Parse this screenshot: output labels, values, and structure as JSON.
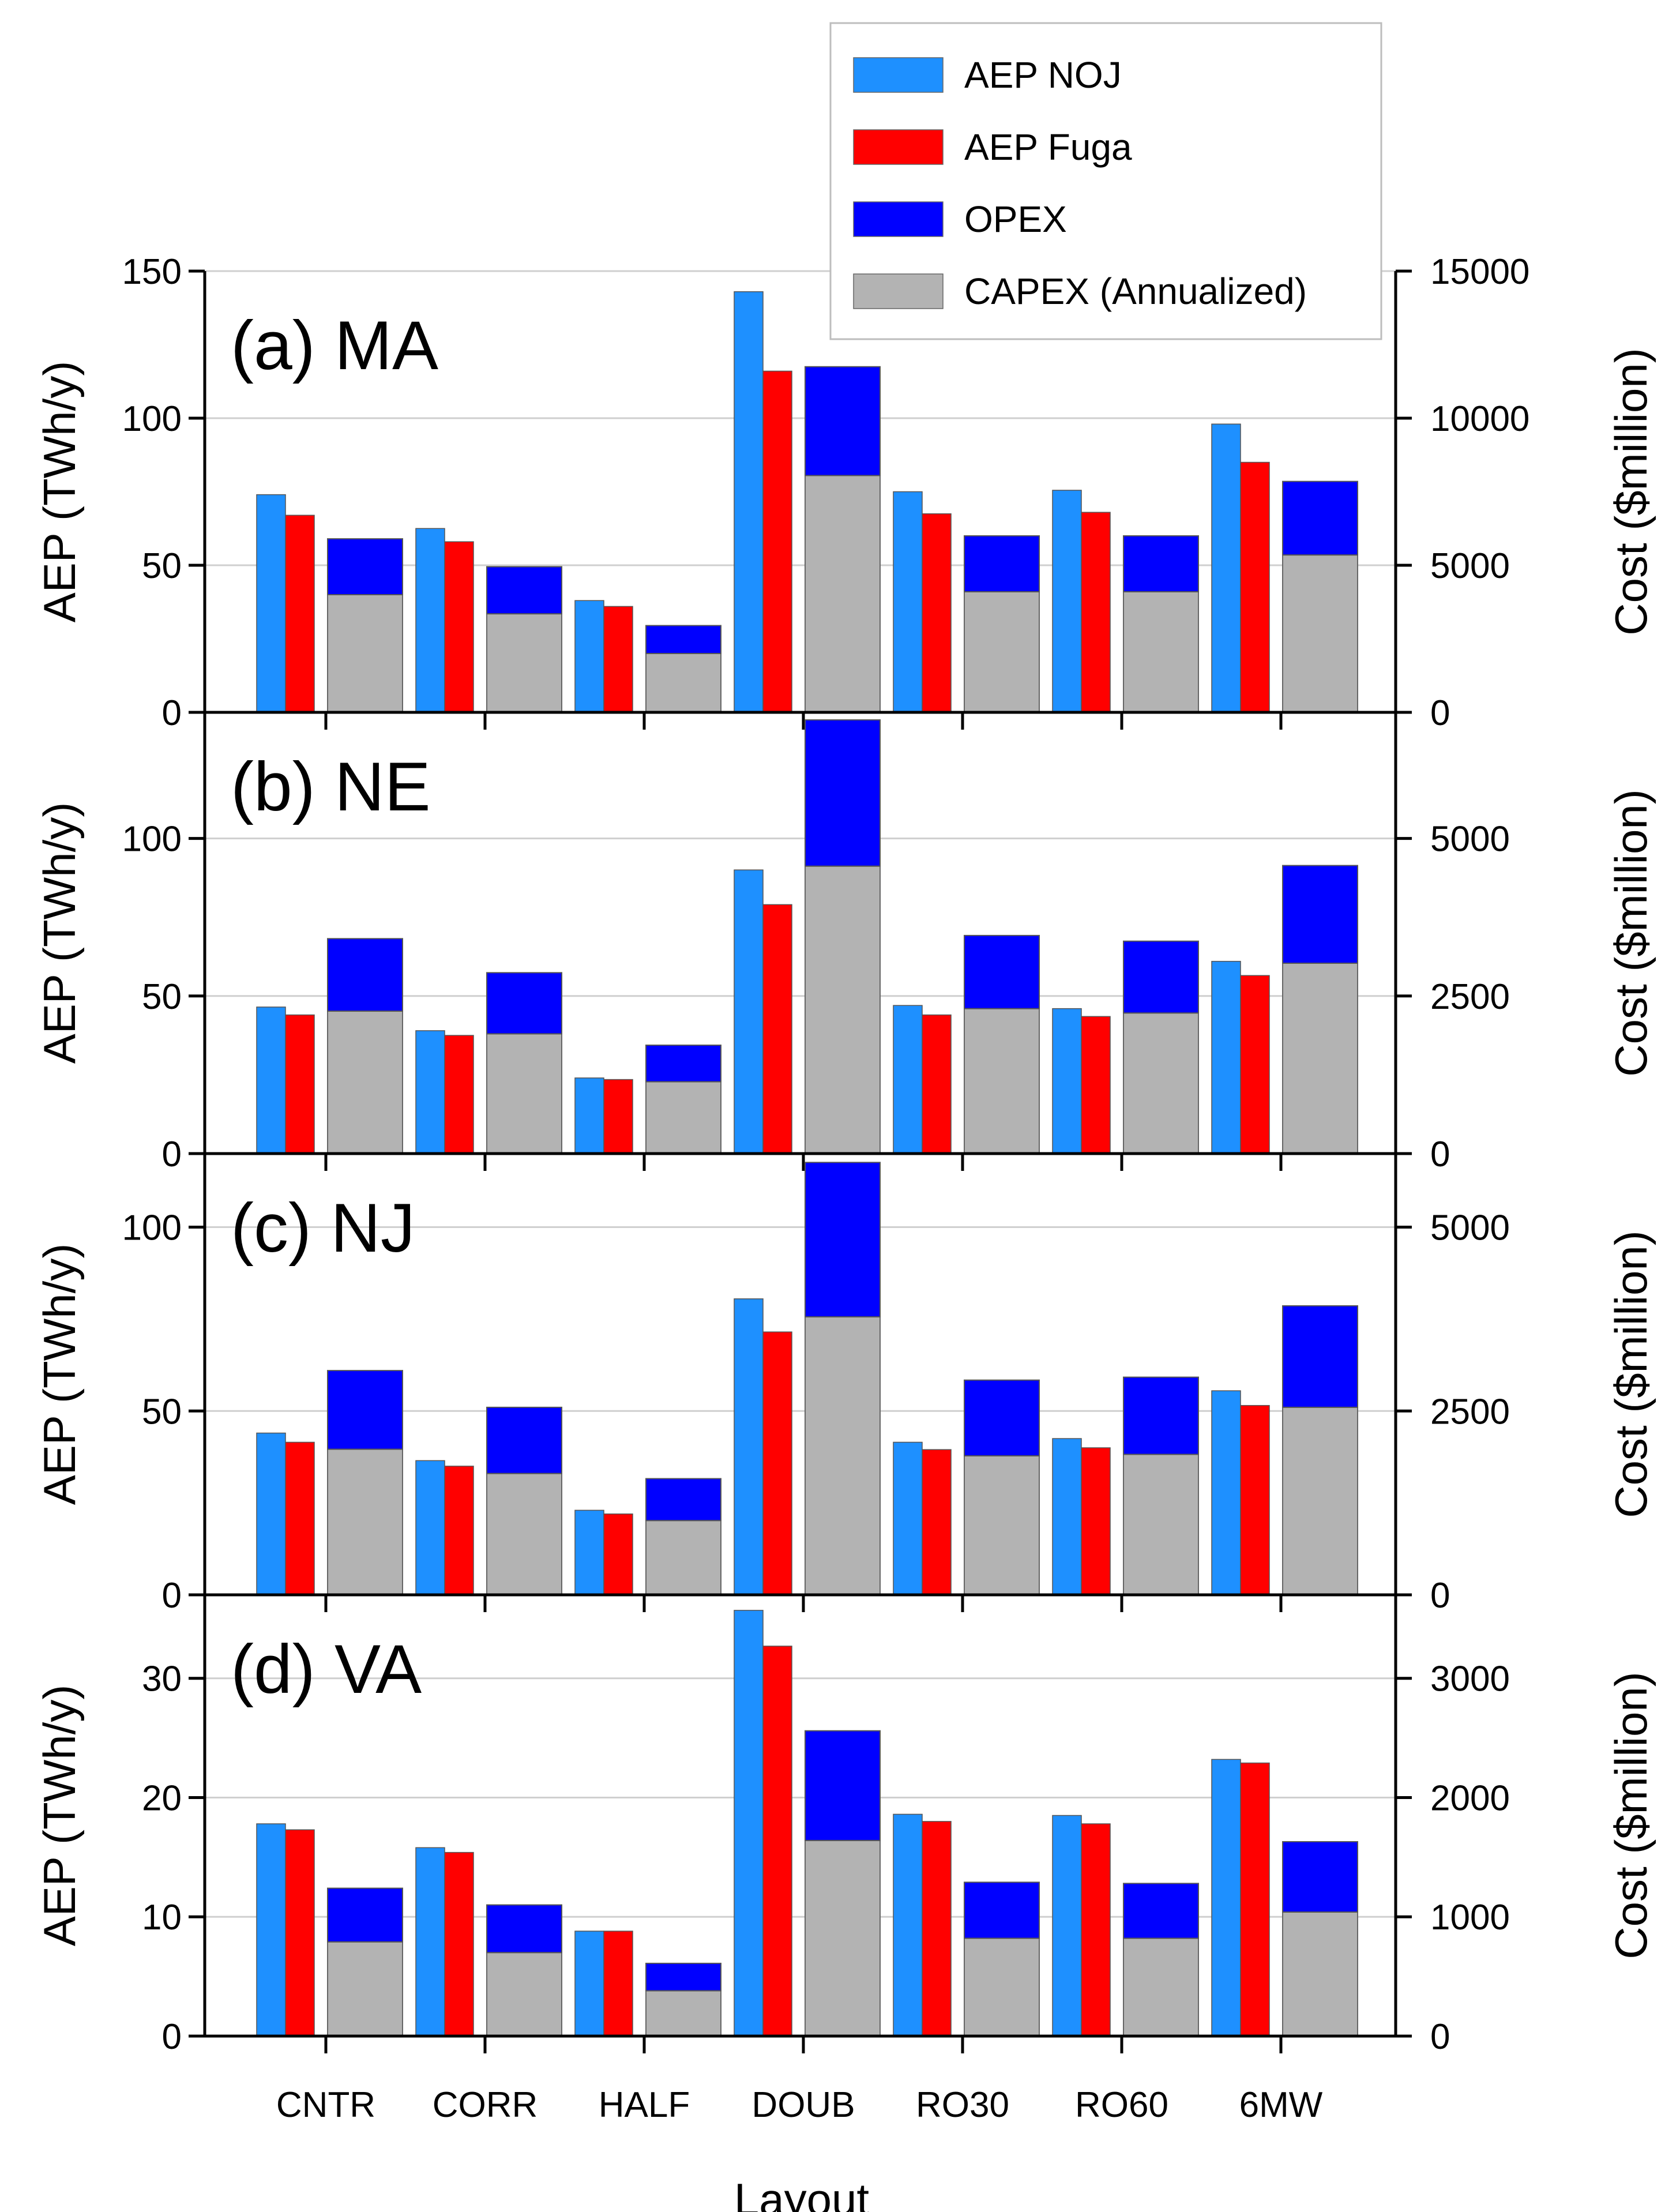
{
  "chart_data": {
    "type": "bar",
    "xlabel": "Layout",
    "categories": [
      "CNTR",
      "CORR",
      "HALF",
      "DOUB",
      "RO30",
      "RO60",
      "6MW"
    ],
    "legend": {
      "placement": "top-right",
      "entries": [
        {
          "label": "AEP NOJ",
          "color": "#1E90FF"
        },
        {
          "label": "AEP Fuga",
          "color": "#FF0000"
        },
        {
          "label": "OPEX",
          "color": "#0000FF"
        },
        {
          "label": "CAPEX (Annualized)",
          "color": "#B3B3B3"
        }
      ]
    },
    "grid": "horizontal",
    "panels": [
      {
        "label": "(a) MA",
        "ylabel": "AEP (TWh/y)",
        "y2label": "Cost ($million)",
        "ylim": [
          0,
          150
        ],
        "yticks": [
          0,
          50,
          100,
          150
        ],
        "y2lim": [
          0,
          15000
        ],
        "y2ticks": [
          0,
          5000,
          10000,
          15000
        ],
        "aep_noj": [
          74,
          62.5,
          38,
          143,
          75,
          75.5,
          98
        ],
        "aep_fuga": [
          67,
          58,
          36,
          116,
          67.5,
          68,
          85
        ],
        "capex": [
          4000,
          3350,
          2000,
          8050,
          4100,
          4100,
          5350
        ],
        "opex": [
          1900,
          1600,
          950,
          3700,
          1900,
          1900,
          2500
        ]
      },
      {
        "label": "(b) NE",
        "ylabel": "AEP (TWh/y)",
        "y2label": "Cost ($million)",
        "ylim": [
          0,
          140
        ],
        "yticks": [
          0,
          50,
          100
        ],
        "y2lim": [
          0,
          7000
        ],
        "y2ticks": [
          0,
          2500,
          5000
        ],
        "aep_noj": [
          46.5,
          39,
          24,
          90,
          47,
          46,
          61
        ],
        "aep_fuga": [
          44,
          37.5,
          23.5,
          79,
          44,
          43.5,
          56.5
        ],
        "capex": [
          2260,
          1900,
          1140,
          4560,
          2300,
          2230,
          3020
        ],
        "opex": [
          1150,
          970,
          580,
          2320,
          1160,
          1140,
          1550
        ]
      },
      {
        "label": "(c) NJ",
        "ylabel": "AEP (TWh/y)",
        "y2label": "Cost ($million)",
        "ylim": [
          0,
          120
        ],
        "yticks": [
          0,
          50,
          100
        ],
        "y2lim": [
          0,
          6000
        ],
        "y2ticks": [
          0,
          2500,
          5000
        ],
        "aep_noj": [
          44,
          36.5,
          23,
          80.5,
          41.5,
          42.5,
          55.5
        ],
        "aep_fuga": [
          41.5,
          35,
          22,
          71.5,
          39.5,
          40,
          51.5
        ],
        "capex": [
          1980,
          1650,
          1010,
          3780,
          1890,
          1910,
          2550
        ],
        "opex": [
          1070,
          900,
          570,
          2100,
          1030,
          1050,
          1380
        ]
      },
      {
        "label": "(d) VA",
        "ylabel": "AEP (TWh/y)",
        "y2label": "Cost ($million)",
        "ylim": [
          0,
          37
        ],
        "yticks": [
          0,
          10,
          20,
          30
        ],
        "y2lim": [
          0,
          3700
        ],
        "y2ticks": [
          0,
          1000,
          2000,
          3000
        ],
        "aep_noj": [
          17.8,
          15.8,
          8.8,
          35.7,
          18.6,
          18.5,
          23.2
        ],
        "aep_fuga": [
          17.3,
          15.4,
          8.8,
          32.7,
          18,
          17.8,
          22.9
        ],
        "capex": [
          790,
          700,
          380,
          1640,
          820,
          820,
          1040
        ],
        "opex": [
          450,
          400,
          230,
          920,
          470,
          460,
          590
        ]
      }
    ]
  }
}
